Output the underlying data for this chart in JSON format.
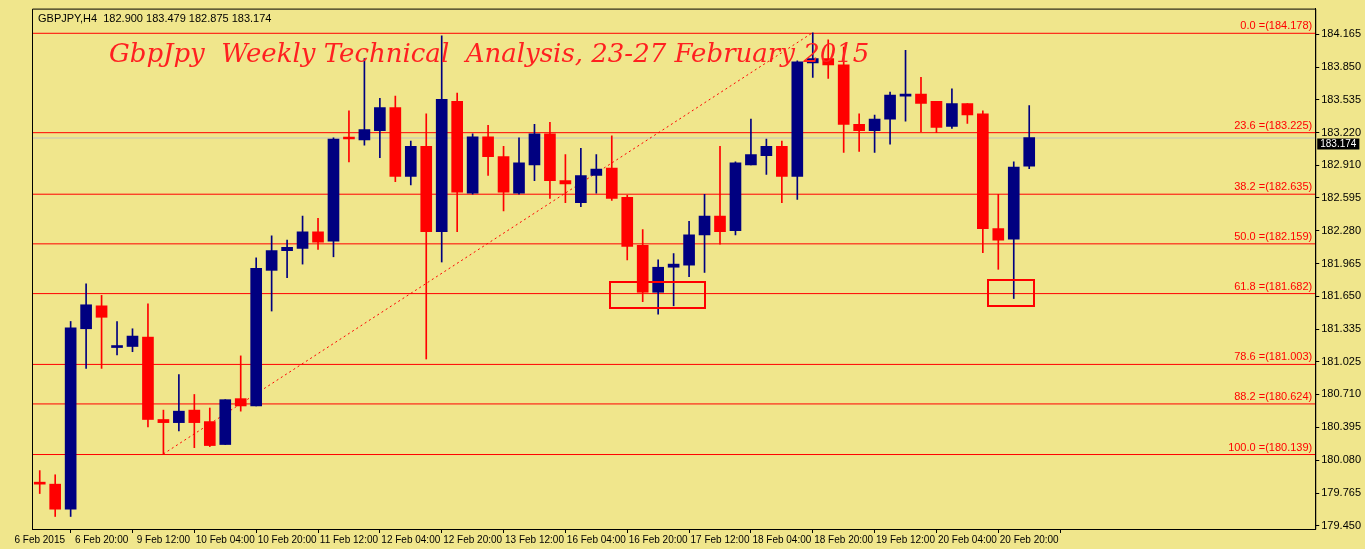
{
  "chart_data": {
    "type": "candlestick",
    "title": "GbpJpy  Weekly Technical  Analysis, 23-27 February 2015",
    "subtitle": "GBPJPY,H4  182.900 183.479 182.875 183.174",
    "categories": [
      "6 Feb 2015",
      null,
      null,
      null,
      "6 Feb 20:00",
      null,
      null,
      null,
      "9 Feb 12:00",
      null,
      null,
      null,
      "10 Feb 04:00",
      null,
      null,
      null,
      "10 Feb 20:00",
      null,
      null,
      null,
      "11 Feb 12:00",
      null,
      null,
      null,
      "12 Feb 04:00",
      null,
      null,
      null,
      "12 Feb 20:00",
      null,
      null,
      null,
      "13 Feb 12:00",
      null,
      null,
      null,
      "16 Feb 04:00",
      null,
      null,
      null,
      "16 Feb 20:00",
      null,
      null,
      null,
      "17 Feb 12:00",
      null,
      null,
      null,
      "18 Feb 04:00",
      null,
      null,
      null,
      "18 Feb 20:00",
      null,
      null,
      null,
      "19 Feb 12:00",
      null,
      null,
      null,
      "20 Feb 04:00",
      null,
      null,
      null,
      "20 Feb 20:00",
      null,
      null,
      null,
      null,
      null,
      null,
      null,
      null,
      null,
      null,
      null,
      null,
      null,
      null,
      null,
      null,
      null,
      null
    ],
    "ohlc": [
      [
        179.86,
        179.98,
        179.76,
        179.85
      ],
      [
        179.85,
        179.94,
        179.54,
        179.61
      ],
      [
        179.61,
        181.41,
        179.54,
        181.35
      ],
      [
        181.34,
        181.77,
        180.96,
        181.57
      ],
      [
        181.56,
        181.66,
        180.96,
        181.45
      ],
      [
        181.16,
        181.41,
        181.09,
        181.17
      ],
      [
        181.17,
        181.34,
        181.12,
        181.27
      ],
      [
        181.26,
        181.58,
        180.4,
        180.47
      ],
      [
        180.47,
        180.56,
        180.139,
        180.44
      ],
      [
        180.44,
        180.9,
        180.36,
        180.55
      ],
      [
        180.56,
        180.71,
        180.2,
        180.44
      ],
      [
        180.45,
        180.58,
        180.21,
        180.22
      ],
      [
        180.23,
        180.66,
        180.23,
        180.66
      ],
      [
        180.67,
        181.08,
        180.55,
        180.6
      ],
      [
        180.6,
        182.02,
        180.6,
        181.92
      ],
      [
        181.9,
        182.23,
        181.51,
        182.09
      ],
      [
        182.09,
        182.19,
        181.83,
        182.12
      ],
      [
        182.11,
        182.42,
        181.96,
        182.27
      ],
      [
        182.27,
        182.4,
        182.1,
        182.17
      ],
      [
        182.18,
        183.17,
        182.03,
        183.16
      ],
      [
        183.17,
        183.43,
        182.94,
        183.16
      ],
      [
        183.15,
        183.93,
        183.1,
        183.25
      ],
      [
        183.24,
        183.55,
        182.98,
        183.46
      ],
      [
        183.46,
        183.57,
        182.75,
        182.8
      ],
      [
        182.8,
        183.14,
        182.72,
        183.09
      ],
      [
        183.09,
        183.4,
        181.05,
        182.27
      ],
      [
        182.27,
        184.15,
        181.98,
        183.54
      ],
      [
        183.52,
        183.6,
        182.27,
        182.65
      ],
      [
        182.64,
        183.21,
        182.63,
        183.18
      ],
      [
        183.18,
        183.29,
        182.81,
        182.99
      ],
      [
        182.99,
        183.09,
        182.47,
        182.65
      ],
      [
        182.64,
        183.17,
        182.63,
        182.93
      ],
      [
        182.91,
        183.3,
        182.76,
        183.21
      ],
      [
        183.21,
        183.32,
        182.59,
        182.76
      ],
      [
        182.76,
        183.01,
        182.55,
        182.73
      ],
      [
        182.55,
        183.07,
        182.51,
        182.81
      ],
      [
        182.81,
        183.01,
        182.64,
        182.87
      ],
      [
        182.88,
        183.19,
        182.57,
        182.59
      ],
      [
        182.6,
        182.62,
        182.0,
        182.13
      ],
      [
        182.14,
        182.29,
        181.6,
        181.69
      ],
      [
        181.69,
        182.0,
        181.48,
        181.93
      ],
      [
        181.93,
        182.06,
        181.56,
        181.96
      ],
      [
        181.95,
        182.37,
        181.84,
        182.24
      ],
      [
        182.24,
        182.63,
        181.88,
        182.42
      ],
      [
        182.42,
        183.09,
        182.15,
        182.27
      ],
      [
        182.28,
        182.94,
        182.24,
        182.93
      ],
      [
        182.91,
        183.35,
        182.91,
        183.01
      ],
      [
        183.0,
        183.16,
        182.82,
        183.09
      ],
      [
        183.09,
        183.14,
        182.55,
        182.8
      ],
      [
        182.8,
        183.91,
        182.58,
        183.9
      ],
      [
        183.89,
        184.178,
        183.75,
        183.93
      ],
      [
        183.93,
        184.11,
        183.74,
        183.87
      ],
      [
        183.87,
        184.04,
        183.03,
        183.3
      ],
      [
        183.3,
        183.4,
        183.04,
        183.24
      ],
      [
        183.24,
        183.39,
        183.03,
        183.35
      ],
      [
        183.35,
        183.61,
        183.11,
        183.58
      ],
      [
        183.57,
        184.01,
        183.33,
        183.59
      ],
      [
        183.59,
        183.75,
        183.23,
        183.5
      ],
      [
        183.52,
        183.52,
        183.22,
        183.27
      ],
      [
        183.28,
        183.64,
        183.26,
        183.5
      ],
      [
        183.5,
        183.5,
        183.31,
        183.39
      ],
      [
        183.4,
        183.43,
        182.07,
        182.3
      ],
      [
        182.3,
        182.63,
        181.91,
        182.19
      ],
      [
        182.2,
        182.94,
        181.63,
        182.89
      ],
      [
        182.9,
        183.479,
        182.875,
        183.174
      ],
      null,
      null,
      null,
      null,
      null,
      null,
      null,
      null,
      null,
      null,
      null,
      null,
      null,
      null,
      null,
      null,
      null,
      null
    ],
    "colors": [
      "#ff0000",
      "#ff0000",
      "#000080",
      "#000080",
      "#ff0000",
      "#000080",
      "#000080",
      "#ff0000",
      "#ff0000",
      "#000080",
      "#ff0000",
      "#ff0000",
      "#000080",
      "#ff0000",
      "#000080",
      "#000080",
      "#000080",
      "#000080",
      "#ff0000",
      "#000080",
      "#ff0000",
      "#000080",
      "#000080",
      "#ff0000",
      "#000080",
      "#ff0000",
      "#000080",
      "#ff0000",
      "#000080",
      "#ff0000",
      "#ff0000",
      "#000080",
      "#000080",
      "#ff0000",
      "#ff0000",
      "#000080",
      "#000080",
      "#ff0000",
      "#ff0000",
      "#ff0000",
      "#000080",
      "#000080",
      "#000080",
      "#000080",
      "#ff0000",
      "#000080",
      "#000080",
      "#000080",
      "#ff0000",
      "#000080",
      "#000080",
      "#ff0000",
      "#ff0000",
      "#ff0000",
      "#000080",
      "#000080",
      "#000080",
      "#ff0000",
      "#ff0000",
      "#000080",
      "#ff0000",
      "#ff0000",
      "#ff0000",
      "#000080",
      "#000080",
      null,
      null,
      null,
      null,
      null,
      null,
      null,
      null,
      null,
      null,
      null,
      null,
      null,
      null,
      null,
      null,
      null,
      null
    ],
    "series": [
      {
        "type": "line",
        "color": "#ff0000",
        "line_style": "dotted",
        "values": [
          null,
          null,
          null,
          null,
          null,
          null,
          null,
          null,
          180.14,
          null,
          null,
          null,
          null,
          null,
          null,
          null,
          null,
          null,
          null,
          null,
          null,
          null,
          null,
          null,
          null,
          null,
          null,
          null,
          null,
          null,
          null,
          null,
          null,
          null,
          null,
          null,
          null,
          null,
          null,
          null,
          null,
          null,
          null,
          null,
          null,
          null,
          null,
          null,
          null,
          null,
          184.18,
          null,
          null,
          null,
          null,
          null,
          null,
          null,
          null,
          null,
          null,
          null,
          null,
          null,
          null,
          null,
          null,
          null,
          null,
          null,
          null,
          null,
          null,
          null,
          null,
          null,
          null,
          null,
          null,
          null,
          null,
          null,
          null
        ]
      }
    ],
    "ylim": [
      179.42,
      184.41
    ],
    "yticks": [
      184.165,
      {
        "value": 183.85,
        "label": "183.850"
      },
      183.535,
      {
        "value": 183.22,
        "label": "183.220"
      },
      {
        "value": 182.91,
        "label": "182.910"
      },
      182.595,
      {
        "value": 182.28,
        "label": "182.280"
      },
      181.965,
      {
        "value": 181.65,
        "label": "181.650"
      },
      181.335,
      181.025,
      {
        "value": 180.71,
        "label": "180.710"
      },
      180.395,
      {
        "value": 180.08,
        "label": "180.080"
      },
      179.765,
      {
        "value": 179.45,
        "label": "179.450"
      }
    ],
    "ref_lines": [
      {
        "axis": "y",
        "value": 184.178,
        "label": "0.0 =(184.178)",
        "color": "#ff0000"
      },
      {
        "axis": "y",
        "value": 183.225,
        "label": "23.6 =(183.225)",
        "color": "#ff0000"
      },
      {
        "axis": "y",
        "value": 182.635,
        "label": "38.2 =(182.635)",
        "color": "#ff0000"
      },
      {
        "axis": "y",
        "value": 182.159,
        "label": "50.0 =(182.159)",
        "color": "#ff0000"
      },
      {
        "axis": "y",
        "value": 181.682,
        "label": "61.8 =(181.682)",
        "color": "#ff0000"
      },
      {
        "axis": "y",
        "value": 181.003,
        "label": "78.6 =(181.003)",
        "color": "#ff0000"
      },
      {
        "axis": "y",
        "value": 180.624,
        "label": "88.2 =(180.624)",
        "color": "#ff0000"
      },
      {
        "axis": "y",
        "value": 180.139,
        "label": "100.0 =(180.139)",
        "color": "#ff0000"
      },
      {
        "axis": "y",
        "value": 183.174,
        "label": "183.174",
        "color": "#c0c0c0"
      }
    ]
  }
}
